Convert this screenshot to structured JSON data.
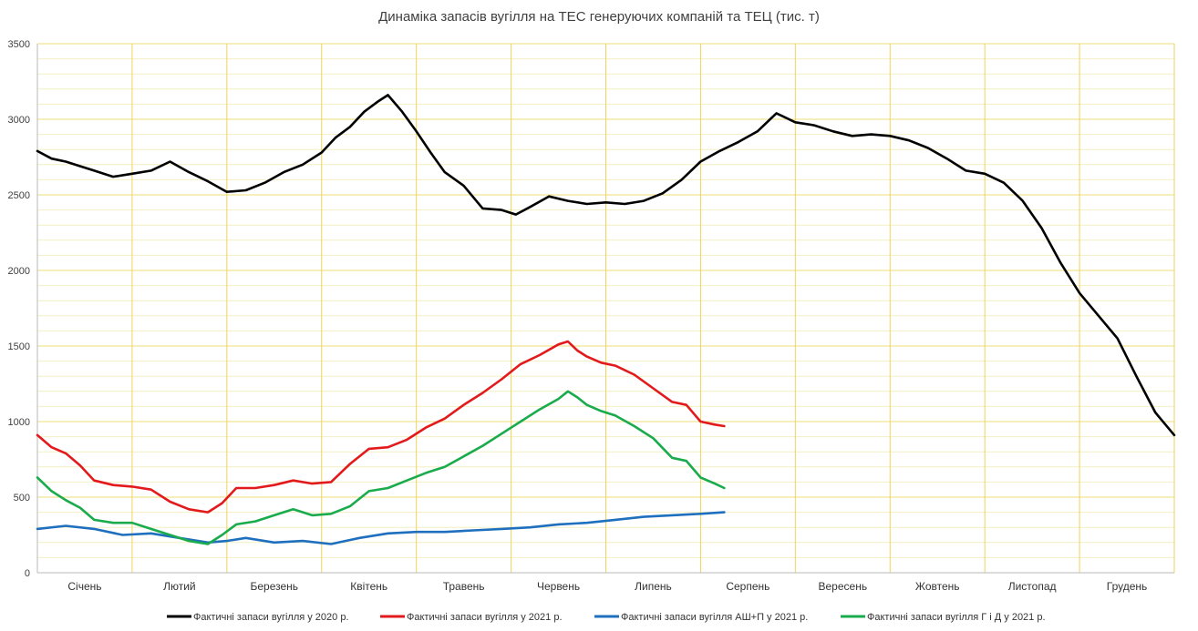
{
  "chart_data": {
    "type": "line",
    "title": "Динаміка запасів вугілля на ТЕС генеруючих компаній та ТЕЦ (тис. т)",
    "xlabel": "",
    "ylabel": "",
    "ylim": [
      0,
      3500
    ],
    "yticks": [
      0,
      500,
      1000,
      1500,
      2000,
      2500,
      3000,
      3500
    ],
    "categories": [
      "Січень",
      "Лютий",
      "Березень",
      "Квітень",
      "Травень",
      "Червень",
      "Липень",
      "Серпень",
      "Вересень",
      "Жовтень",
      "Листопад",
      "Грудень"
    ],
    "grid": "horizontal minor gridlines every 100, vertical month separators",
    "legend_position": "bottom",
    "x_units": "month index (0 = start of Січень, 12 = end of Грудень)",
    "series": [
      {
        "name": "Фактичні запаси вугілля у 2020 р.",
        "color": "#000000",
        "x": [
          0,
          0.15,
          0.3,
          0.45,
          0.6,
          0.8,
          1.0,
          1.2,
          1.4,
          1.6,
          1.8,
          2.0,
          2.2,
          2.4,
          2.6,
          2.8,
          3.0,
          3.15,
          3.3,
          3.45,
          3.6,
          3.7,
          3.85,
          4.0,
          4.15,
          4.3,
          4.5,
          4.7,
          4.9,
          5.05,
          5.2,
          5.4,
          5.6,
          5.8,
          6.0,
          6.2,
          6.4,
          6.6,
          6.8,
          7.0,
          7.2,
          7.4,
          7.6,
          7.8,
          8.0,
          8.2,
          8.4,
          8.6,
          8.8,
          9.0,
          9.2,
          9.4,
          9.6,
          9.8,
          10.0,
          10.2,
          10.4,
          10.6,
          10.8,
          11.0,
          11.2,
          11.4,
          11.6,
          11.8,
          12.0
        ],
        "y": [
          2790,
          2740,
          2720,
          2690,
          2660,
          2620,
          2640,
          2660,
          2720,
          2650,
          2590,
          2520,
          2530,
          2580,
          2650,
          2700,
          2780,
          2880,
          2950,
          3050,
          3120,
          3160,
          3050,
          2920,
          2780,
          2650,
          2560,
          2410,
          2400,
          2370,
          2420,
          2490,
          2460,
          2440,
          2450,
          2440,
          2460,
          2510,
          2600,
          2720,
          2790,
          2850,
          2920,
          3040,
          2980,
          2960,
          2920,
          2890,
          2900,
          2890,
          2860,
          2810,
          2740,
          2660,
          2640,
          2580,
          2460,
          2280,
          2050,
          1850,
          1700,
          1550,
          1300,
          1060,
          910
        ]
      },
      {
        "name": "Фактичні запаси вугілля у 2021 р.",
        "color": "#e31a1c",
        "x": [
          0,
          0.15,
          0.3,
          0.45,
          0.6,
          0.8,
          1.0,
          1.2,
          1.4,
          1.6,
          1.8,
          1.95,
          2.1,
          2.3,
          2.5,
          2.7,
          2.9,
          3.1,
          3.3,
          3.5,
          3.7,
          3.9,
          4.1,
          4.3,
          4.5,
          4.7,
          4.9,
          5.1,
          5.3,
          5.5,
          5.6,
          5.7,
          5.8,
          5.95,
          6.1,
          6.3,
          6.5,
          6.7,
          6.85,
          7.0,
          7.15,
          7.25
        ],
        "y": [
          910,
          830,
          790,
          710,
          610,
          580,
          570,
          550,
          470,
          420,
          400,
          460,
          560,
          560,
          580,
          610,
          590,
          600,
          720,
          820,
          830,
          880,
          960,
          1020,
          1110,
          1190,
          1280,
          1380,
          1440,
          1510,
          1530,
          1470,
          1430,
          1390,
          1370,
          1310,
          1220,
          1130,
          1110,
          1000,
          980,
          970
        ]
      },
      {
        "name": "Фактичні запаси вугілля АШ+П у 2021 р.",
        "color": "#1f6fbf",
        "x": [
          0,
          0.3,
          0.6,
          0.9,
          1.2,
          1.5,
          1.8,
          2.0,
          2.2,
          2.5,
          2.8,
          3.1,
          3.4,
          3.7,
          4.0,
          4.3,
          4.6,
          4.9,
          5.2,
          5.5,
          5.8,
          6.1,
          6.4,
          6.7,
          7.0,
          7.25
        ],
        "y": [
          290,
          310,
          290,
          250,
          260,
          230,
          200,
          210,
          230,
          200,
          210,
          190,
          230,
          260,
          270,
          270,
          280,
          290,
          300,
          320,
          330,
          350,
          370,
          380,
          390,
          400
        ]
      },
      {
        "name": "Фактичні запаси вугілля Г і Д у 2021 р.",
        "color": "#1aab4c",
        "x": [
          0,
          0.15,
          0.3,
          0.45,
          0.6,
          0.8,
          1.0,
          1.2,
          1.4,
          1.6,
          1.8,
          1.95,
          2.1,
          2.3,
          2.5,
          2.7,
          2.9,
          3.1,
          3.3,
          3.5,
          3.7,
          3.9,
          4.1,
          4.3,
          4.5,
          4.7,
          4.9,
          5.1,
          5.3,
          5.5,
          5.6,
          5.7,
          5.8,
          5.95,
          6.1,
          6.3,
          6.5,
          6.7,
          6.85,
          7.0,
          7.15,
          7.25
        ],
        "y": [
          630,
          540,
          480,
          430,
          350,
          330,
          330,
          290,
          250,
          210,
          190,
          250,
          320,
          340,
          380,
          420,
          380,
          390,
          440,
          540,
          560,
          610,
          660,
          700,
          770,
          840,
          920,
          1000,
          1080,
          1150,
          1200,
          1160,
          1110,
          1070,
          1040,
          970,
          890,
          760,
          740,
          630,
          590,
          560
        ]
      }
    ]
  }
}
